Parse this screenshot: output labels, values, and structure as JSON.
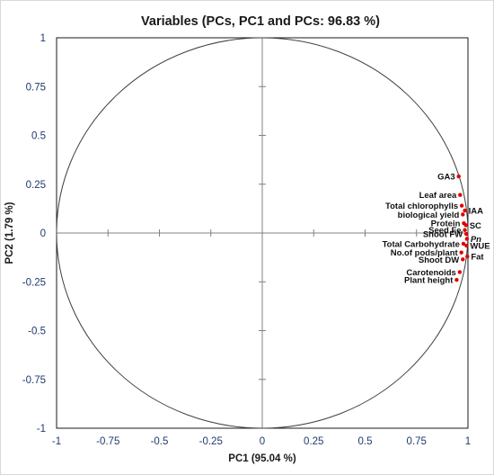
{
  "chart_data": {
    "type": "scatter",
    "title": "Variables (PCs, PC1 and PCs: 96.83 %)",
    "xlabel": "PC1 (95.04 %)",
    "ylabel": "PC2 (1.79 %)",
    "xlim": [
      -1,
      1
    ],
    "ylim": [
      -1,
      1
    ],
    "x_ticks": [
      "-1",
      "-0.75",
      "-0.5",
      "-0.25",
      "0",
      "0.25",
      "0.5",
      "0.75",
      "1"
    ],
    "y_ticks": [
      "1",
      "0.75",
      "0.5",
      "0.25",
      "0",
      "-0.25",
      "-0.5",
      "-0.75",
      "-1"
    ],
    "unit_circle": true,
    "grid": false,
    "point_color": "#e00000",
    "highlight_color": "#e00000",
    "label_color": "#111111",
    "points": [
      {
        "label": "GA3",
        "x": 0.955,
        "y": 0.29
      },
      {
        "label": "Leaf area",
        "x": 0.962,
        "y": 0.195
      },
      {
        "label": "Total chlorophylls",
        "x": 0.97,
        "y": 0.14
      },
      {
        "label": "IAA",
        "x": 0.985,
        "y": 0.115
      },
      {
        "label": "biological yield",
        "x": 0.975,
        "y": 0.095,
        "highlight": true
      },
      {
        "label": "Protein",
        "x": 0.98,
        "y": 0.05
      },
      {
        "label": "SC",
        "x": 0.99,
        "y": 0.04
      },
      {
        "label": "Seed Fe",
        "x": 0.985,
        "y": 0.015
      },
      {
        "label": "Shoot FW",
        "x": 0.992,
        "y": -0.005
      },
      {
        "label": "Pn",
        "x": 0.995,
        "y": -0.03,
        "italic": true
      },
      {
        "label": "Total Carbohydrate",
        "x": 0.978,
        "y": -0.055
      },
      {
        "label": "WUE",
        "x": 0.993,
        "y": -0.065
      },
      {
        "label": "No.of pods/plant",
        "x": 0.968,
        "y": -0.1
      },
      {
        "label": "Fat",
        "x": 0.997,
        "y": -0.12
      },
      {
        "label": "Shoot DW",
        "x": 0.975,
        "y": -0.135
      },
      {
        "label": "Carotenoids",
        "x": 0.96,
        "y": -0.2
      },
      {
        "label": "Plant height",
        "x": 0.945,
        "y": -0.24
      }
    ]
  }
}
